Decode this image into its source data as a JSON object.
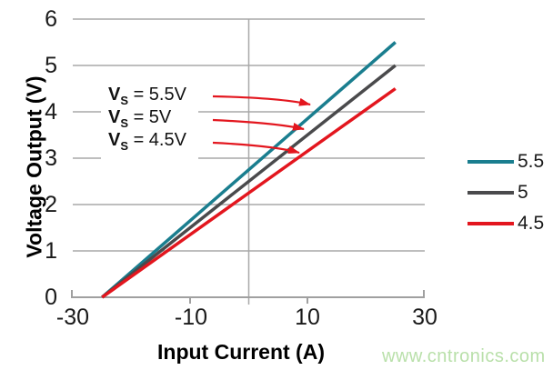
{
  "chart_data": {
    "type": "line",
    "xlabel": "Input Current (A)",
    "ylabel": "Voltage Output (V)",
    "xlim": [
      -30,
      30
    ],
    "ylim": [
      0,
      6
    ],
    "xticks": [
      -30,
      -10,
      10,
      30
    ],
    "yticks": [
      0,
      1,
      2,
      3,
      4,
      5,
      6
    ],
    "grid": "horizontal gridlines each 1 V; vertical gridline at 0 A; x-axis ticks at -10 and 10",
    "legend_position": "right",
    "series": [
      {
        "name": "5.5",
        "color": "#1a7e8f",
        "points": [
          [
            -25,
            0
          ],
          [
            25,
            5.5
          ]
        ]
      },
      {
        "name": "5",
        "color": "#4a4a4c",
        "points": [
          [
            -25,
            0
          ],
          [
            25,
            5.0
          ]
        ]
      },
      {
        "name": "4.5",
        "color": "#e3161e",
        "points": [
          [
            -25,
            0
          ],
          [
            25,
            4.5
          ]
        ]
      }
    ]
  },
  "axes": {
    "y_tick_labels": [
      "6",
      "5",
      "4",
      "3",
      "2",
      "1",
      "0"
    ],
    "x_tick_labels": [
      "-30",
      "-10",
      "10",
      "30"
    ],
    "x_title": "Input Current (A)",
    "y_title": "Voltage Output (V)"
  },
  "annotations": [
    {
      "v": "V",
      "sub": "S",
      "rest": " = 5.5V",
      "target_series": "5.5"
    },
    {
      "v": "V",
      "sub": "S",
      "rest": " = 5V",
      "target_series": "5"
    },
    {
      "v": "V",
      "sub": "S",
      "rest": " = 4.5V",
      "target_series": "4.5"
    }
  ],
  "legend": {
    "items": [
      {
        "label": "5.5",
        "color": "#1a7e8f"
      },
      {
        "label": "5",
        "color": "#4a4a4c"
      },
      {
        "label": "4.5",
        "color": "#e3161e"
      }
    ]
  },
  "watermark": {
    "text": "www.cntronics.com",
    "color": "#b9e0aa"
  },
  "colors": {
    "gridline": "#a8a8a8",
    "axis": "#a0a0a0",
    "arrow": "#e3161e",
    "background": "#ffffff"
  }
}
